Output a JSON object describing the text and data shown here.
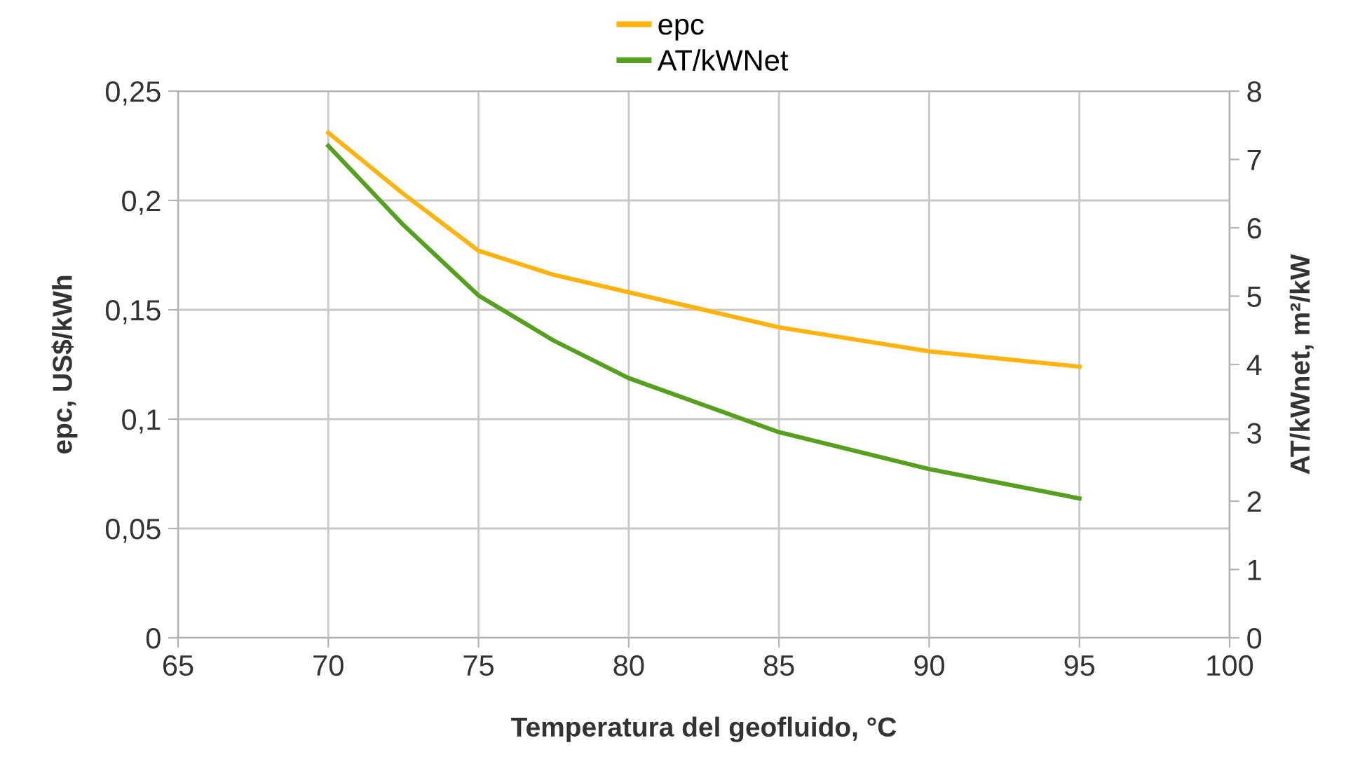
{
  "chart_data": {
    "type": "line",
    "xlabel": "Temperatura del geofluido, °C",
    "ylabel": "epc, US$/kWh",
    "y2label": "AT/kWnet, m²/kW",
    "x": [
      70,
      72.5,
      75,
      77.5,
      80,
      85,
      90,
      95
    ],
    "series": [
      {
        "name": "epc",
        "color": "#ffb30f",
        "values": [
          0.231,
          0.203,
          0.177,
          0.166,
          0.158,
          0.142,
          0.131,
          0.124
        ]
      },
      {
        "name": "AT/kWNet",
        "color": "#55a01e",
        "axis": "y2",
        "values": [
          7.2,
          6.04,
          5.01,
          4.35,
          3.8,
          3.01,
          2.47,
          2.04
        ]
      }
    ],
    "xlim": [
      65,
      100
    ],
    "xticks": [
      65,
      70,
      75,
      80,
      85,
      90,
      95,
      100
    ],
    "ylim": [
      0,
      0.25
    ],
    "yticks": [
      {
        "value": 0,
        "label": "0"
      },
      {
        "value": 0.05,
        "label": "0,05"
      },
      {
        "value": 0.1,
        "label": "0,1"
      },
      {
        "value": 0.15,
        "label": "0,15"
      },
      {
        "value": 0.2,
        "label": "0,2"
      },
      {
        "value": 0.25,
        "label": "0,25"
      }
    ],
    "y2lim": [
      0,
      8
    ],
    "y2ticks": [
      0,
      1,
      2,
      3,
      4,
      5,
      6,
      7,
      8
    ],
    "grid": true,
    "legend": "top",
    "marker": "none",
    "line_style": "solid"
  }
}
